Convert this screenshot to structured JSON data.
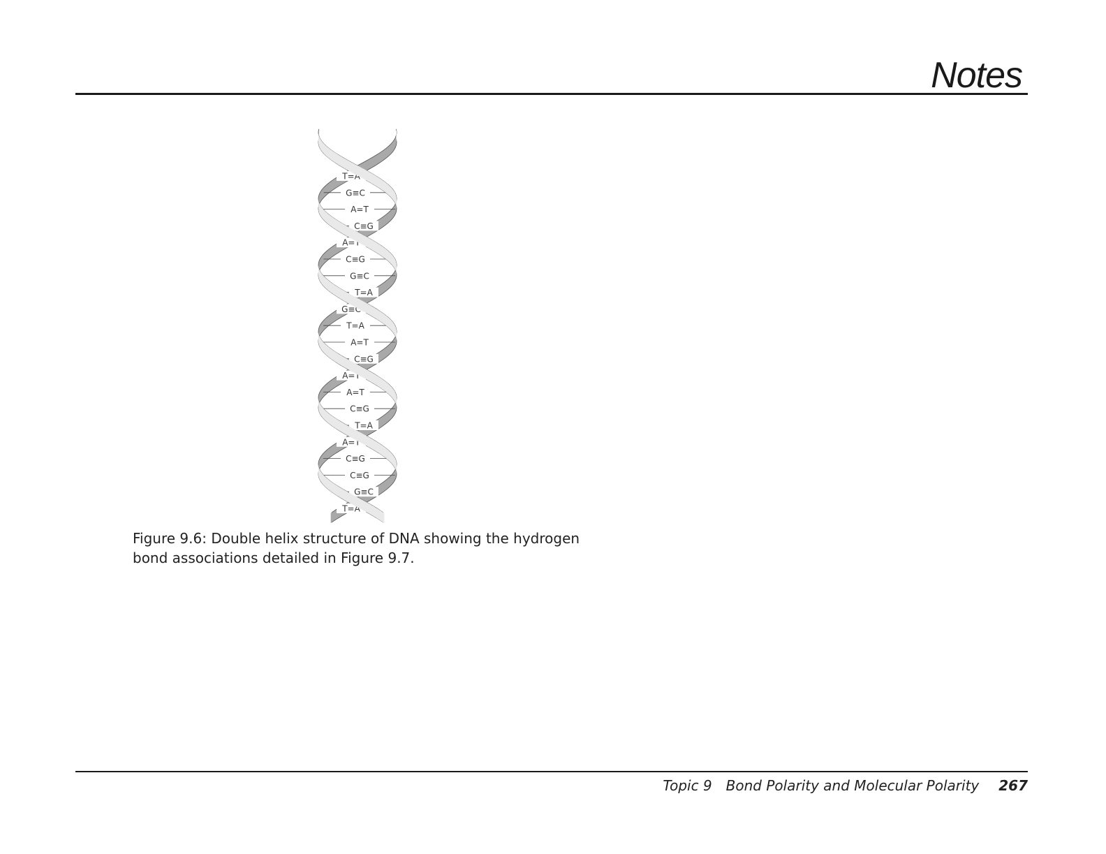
{
  "header": {
    "title": "Notes"
  },
  "figure": {
    "caption": "Figure 9.6: Double helix structure of DNA showing the hydrogen bond associations detailed in Figure 9.7.",
    "base_pairs": [
      {
        "left": "T",
        "right": "A",
        "bond": "double"
      },
      {
        "left": "G",
        "right": "C",
        "bond": "triple"
      },
      {
        "left": "A",
        "right": "T",
        "bond": "double"
      },
      {
        "left": "C",
        "right": "G",
        "bond": "triple"
      },
      {
        "left": "A",
        "right": "T",
        "bond": "double"
      },
      {
        "left": "C",
        "right": "G",
        "bond": "triple"
      },
      {
        "left": "G",
        "right": "C",
        "bond": "triple"
      },
      {
        "left": "T",
        "right": "A",
        "bond": "double"
      },
      {
        "left": "G",
        "right": "C",
        "bond": "triple"
      },
      {
        "left": "T",
        "right": "A",
        "bond": "double"
      },
      {
        "left": "A",
        "right": "T",
        "bond": "double"
      },
      {
        "left": "C",
        "right": "G",
        "bond": "triple"
      },
      {
        "left": "A",
        "right": "T",
        "bond": "double"
      },
      {
        "left": "A",
        "right": "T",
        "bond": "double"
      },
      {
        "left": "C",
        "right": "G",
        "bond": "triple"
      },
      {
        "left": "T",
        "right": "A",
        "bond": "double"
      },
      {
        "left": "A",
        "right": "T",
        "bond": "double"
      },
      {
        "left": "C",
        "right": "G",
        "bond": "triple"
      },
      {
        "left": "C",
        "right": "G",
        "bond": "triple"
      },
      {
        "left": "G",
        "right": "C",
        "bond": "triple"
      },
      {
        "left": "T",
        "right": "A",
        "bond": "double"
      }
    ],
    "colors": {
      "front_strand": "#e9e9e9",
      "back_strand": "#a9a9a9",
      "outline": "#555555"
    }
  },
  "footer": {
    "topic": "Topic 9",
    "title": "Bond Polarity and Molecular Polarity",
    "page_number": "267"
  }
}
